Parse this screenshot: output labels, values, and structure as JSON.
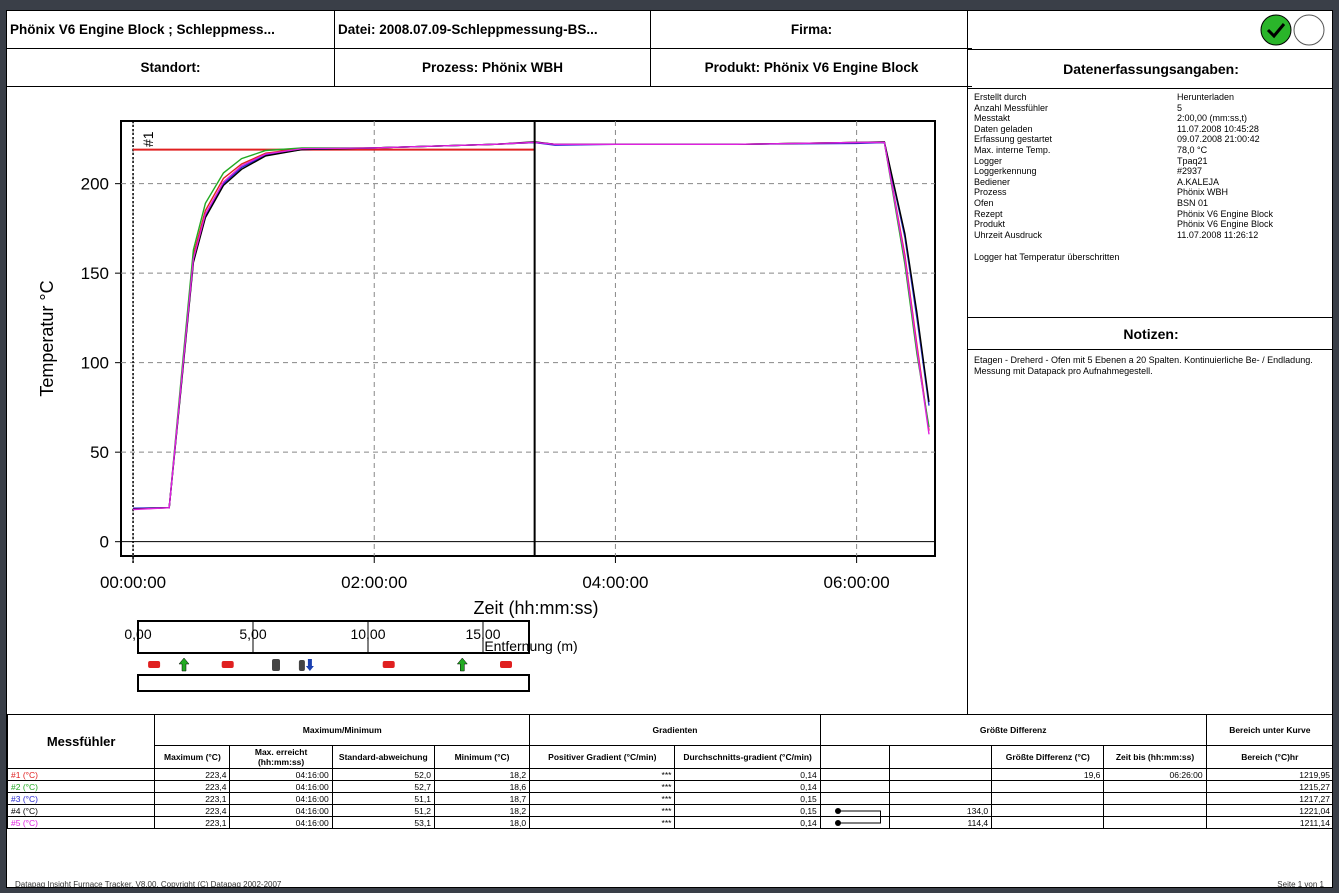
{
  "header": {
    "title": "Phönix V6 Engine Block ; Schleppmess...",
    "datei": "Datei: 2008.07.09-Schleppmessung-BS...",
    "firma": "Firma:",
    "standort": "Standort:",
    "prozess": "Prozess: Phönix WBH",
    "produkt": "Produkt: Phönix V6 Engine Block",
    "daten_title": "Datenerfassungsangaben:",
    "pass_color": "#2ab52a"
  },
  "info": [
    {
      "k": "Erstellt durch",
      "v": "Herunterladen"
    },
    {
      "k": "Anzahl Messfühler",
      "v": "5"
    },
    {
      "k": "Messtakt",
      "v": "2:00,00 (mm:ss,t)"
    },
    {
      "k": "Daten geladen",
      "v": "11.07.2008 10:45:28"
    },
    {
      "k": "Erfassung gestartet",
      "v": "09.07.2008 21:00:42"
    },
    {
      "k": "Max. interne Temp.",
      "v": "78,0 °C"
    },
    {
      "k": "Logger",
      "v": "Tpaq21"
    },
    {
      "k": "Loggerkennung",
      "v": "#2937"
    },
    {
      "k": "Bediener",
      "v": "A.KALEJA"
    },
    {
      "k": "Prozess",
      "v": "Phönix WBH"
    },
    {
      "k": "Ofen",
      "v": "BSN 01"
    },
    {
      "k": "Rezept",
      "v": "Phönix V6 Engine Block"
    },
    {
      "k": "Produkt",
      "v": "Phönix V6 Engine Block"
    },
    {
      "k": "Uhrzeit Ausdruck",
      "v": "11.07.2008 11:26:12"
    }
  ],
  "info_note": "Logger hat Temperatur überschritten",
  "notes_title": "Notizen:",
  "notes_text": "Etagen - Dreherd - Ofen mit 5 Ebenen a 20 Spalten. Kontinuierliche Be- / Endladung. Messung mit Datapack pro Aufnahmegestell.",
  "chart_data": {
    "type": "line",
    "ylabel": "Temperatur °C",
    "xlabel": "Zeit (hh:mm:ss)",
    "x_ticks": [
      "00:00:00",
      "02:00:00",
      "04:00:00",
      "06:00:00"
    ],
    "y_ticks": [
      "0",
      "50",
      "100",
      "150",
      "200"
    ],
    "xlim_min": [
      -0.1,
      6.65
    ],
    "ylim": [
      -8,
      235
    ],
    "marker_label": "#1",
    "marker_x_min": 0,
    "cursor_x_min": 3.33,
    "limit_line": {
      "value": 219,
      "x_end_min": 3.33,
      "color": "#e02020"
    },
    "series": [
      {
        "name": "#1",
        "color": "#e02020",
        "points": [
          [
            0,
            18.5
          ],
          [
            0.3,
            19
          ],
          [
            0.4,
            90
          ],
          [
            0.5,
            160
          ],
          [
            0.6,
            185
          ],
          [
            0.75,
            203
          ],
          [
            0.9,
            211
          ],
          [
            1.1,
            217
          ],
          [
            1.4,
            219.5
          ],
          [
            2,
            220
          ],
          [
            3,
            222
          ],
          [
            3.33,
            223
          ],
          [
            3.5,
            222
          ],
          [
            4,
            222
          ],
          [
            5,
            222
          ],
          [
            6,
            223
          ],
          [
            6.23,
            223
          ],
          [
            6.4,
            160
          ],
          [
            6.5,
            110
          ],
          [
            6.6,
            62
          ]
        ]
      },
      {
        "name": "#2",
        "color": "#22aa22",
        "points": [
          [
            0,
            18.5
          ],
          [
            0.3,
            19
          ],
          [
            0.4,
            92
          ],
          [
            0.5,
            163
          ],
          [
            0.6,
            189
          ],
          [
            0.75,
            206
          ],
          [
            0.9,
            214
          ],
          [
            1.1,
            218.5
          ],
          [
            1.4,
            220
          ],
          [
            2,
            220
          ],
          [
            3,
            222
          ],
          [
            3.33,
            223
          ],
          [
            3.5,
            222
          ],
          [
            4,
            222
          ],
          [
            5,
            222
          ],
          [
            6,
            223
          ],
          [
            6.23,
            223
          ],
          [
            6.4,
            155
          ],
          [
            6.5,
            105
          ],
          [
            6.6,
            64
          ]
        ]
      },
      {
        "name": "#3",
        "color": "#2a2ad0",
        "points": [
          [
            0,
            18.7
          ],
          [
            0.3,
            19
          ],
          [
            0.4,
            88
          ],
          [
            0.5,
            157
          ],
          [
            0.6,
            182
          ],
          [
            0.75,
            200
          ],
          [
            0.9,
            209
          ],
          [
            1.1,
            216
          ],
          [
            1.4,
            219
          ],
          [
            2,
            220
          ],
          [
            3,
            222
          ],
          [
            3.33,
            223
          ],
          [
            3.5,
            221.5
          ],
          [
            4,
            222
          ],
          [
            5,
            222
          ],
          [
            6,
            222.5
          ],
          [
            6.23,
            223
          ],
          [
            6.4,
            170
          ],
          [
            6.5,
            125
          ],
          [
            6.6,
            76
          ]
        ]
      },
      {
        "name": "#4",
        "color": "#000000",
        "points": [
          [
            0,
            18.2
          ],
          [
            0.3,
            19
          ],
          [
            0.4,
            87
          ],
          [
            0.5,
            156
          ],
          [
            0.6,
            181
          ],
          [
            0.75,
            199
          ],
          [
            0.9,
            208
          ],
          [
            1.1,
            215.5
          ],
          [
            1.4,
            219
          ],
          [
            2,
            220
          ],
          [
            3,
            222
          ],
          [
            3.33,
            223.4
          ],
          [
            3.5,
            222
          ],
          [
            4,
            222
          ],
          [
            5,
            222
          ],
          [
            6,
            223
          ],
          [
            6.23,
            223.4
          ],
          [
            6.4,
            172
          ],
          [
            6.5,
            128
          ],
          [
            6.6,
            78
          ]
        ]
      },
      {
        "name": "#5",
        "color": "#e020e0",
        "points": [
          [
            0,
            18
          ],
          [
            0.3,
            19
          ],
          [
            0.4,
            89
          ],
          [
            0.5,
            158
          ],
          [
            0.6,
            183
          ],
          [
            0.75,
            201
          ],
          [
            0.9,
            210
          ],
          [
            1.1,
            216.5
          ],
          [
            1.4,
            219.5
          ],
          [
            2,
            220
          ],
          [
            3,
            222
          ],
          [
            3.33,
            223.1
          ],
          [
            3.5,
            222
          ],
          [
            4,
            222
          ],
          [
            5,
            222
          ],
          [
            6,
            223
          ],
          [
            6.23,
            223.1
          ],
          [
            6.4,
            158
          ],
          [
            6.5,
            108
          ],
          [
            6.6,
            60
          ]
        ]
      }
    ]
  },
  "distance": {
    "ticks": [
      "0,00",
      "5,00",
      "10,00",
      "15,00"
    ],
    "range": [
      0,
      17
    ],
    "label": "Entfernung (m)",
    "icons": [
      {
        "pos": 0.7,
        "type": "car",
        "color": "#e02020"
      },
      {
        "pos": 2.0,
        "type": "arrow-up",
        "color": "#22aa22"
      },
      {
        "pos": 3.9,
        "type": "car",
        "color": "#e02020"
      },
      {
        "pos": 6.0,
        "type": "thumb",
        "color": "#444444"
      },
      {
        "pos": 7.3,
        "type": "pair",
        "color": "#444444"
      },
      {
        "pos": 10.9,
        "type": "car",
        "color": "#e02020"
      },
      {
        "pos": 14.1,
        "type": "arrow-up",
        "color": "#22aa22"
      },
      {
        "pos": 16.0,
        "type": "car",
        "color": "#e02020"
      }
    ]
  },
  "table": {
    "messfuehler": "Messfühler",
    "g_maxmin": "Maximum/Minimum",
    "g_grad": "Gradienten",
    "g_diff": "Größte Differenz",
    "g_bereich": "Bereich unter Kurve",
    "h_max": "Maximum (°C)",
    "h_maxerr": "Max. erreicht (hh:mm:ss)",
    "h_std": "Standard-abweichung",
    "h_min": "Minimum (°C)",
    "h_pos": "Positiver Gradient (°C/min)",
    "h_avg": "Durchschnitts-gradient (°C/min)",
    "h_gd": "Größte Differenz (°C)",
    "h_zeit": "Zeit bis (hh:mm:ss)",
    "h_ber": "Bereich (°C)hr",
    "rows": [
      {
        "name": "#1 (°C)",
        "color": "#e02020",
        "max": "223,4",
        "maxt": "04:16:00",
        "std": "52,0",
        "min": "18,2",
        "pos": "***",
        "avg": "0,14",
        "diffv": "",
        "gd": "19,6",
        "zeit": "06:26:00",
        "ber": "1219,95"
      },
      {
        "name": "#2 (°C)",
        "color": "#22aa22",
        "max": "223,4",
        "maxt": "04:16:00",
        "std": "52,7",
        "min": "18,6",
        "pos": "***",
        "avg": "0,14",
        "diffv": "",
        "gd": "",
        "zeit": "",
        "ber": "1215,27"
      },
      {
        "name": "#3 (°C)",
        "color": "#2a2ad0",
        "max": "223,1",
        "maxt": "04:16:00",
        "std": "51,1",
        "min": "18,7",
        "pos": "***",
        "avg": "0,15",
        "diffv": "",
        "gd": "",
        "zeit": "",
        "ber": "1217,27"
      },
      {
        "name": "#4 (°C)",
        "color": "#000000",
        "max": "223,4",
        "maxt": "04:16:00",
        "std": "51,2",
        "min": "18,2",
        "pos": "***",
        "avg": "0,15",
        "diffv": "134,0",
        "gd": "",
        "zeit": "",
        "ber": "1221,04"
      },
      {
        "name": "#5 (°C)",
        "color": "#e020e0",
        "max": "223,1",
        "maxt": "04:16:00",
        "std": "53,1",
        "min": "18,0",
        "pos": "***",
        "avg": "0,14",
        "diffv": "114,4",
        "gd": "",
        "zeit": "",
        "ber": "1211,14"
      }
    ]
  },
  "footer_left": "Datapaq Insight Furnace Tracker, V8.00, Copyright (C) Datapaq 2002-2007",
  "footer_right": "Seite 1 von 1"
}
